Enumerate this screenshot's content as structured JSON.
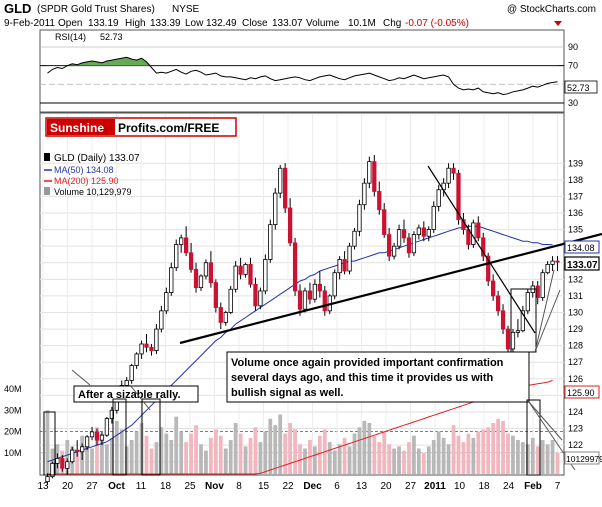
{
  "header": {
    "ticker": "GLD",
    "name": "(SPDR Gold Trust Shares)",
    "exchange": "NYSE",
    "copyright": "@ StockCharts.com",
    "date": "9-Feb-2011",
    "open_label": "Open",
    "open": "133.19",
    "high_label": "High",
    "high": "133.39",
    "low_label": "Low",
    "low": "132.49",
    "close_label": "Close",
    "close": "133.07",
    "volume_label": "Volume",
    "volume": "10.1M",
    "chg_label": "Chg",
    "chg": "-0.07 (-0.05%)"
  },
  "rsi_panel": {
    "label": "RSI(14)",
    "value": "52.73",
    "ticks": [
      "90",
      "70",
      "50",
      "30"
    ],
    "last_label": "52.73"
  },
  "banner": {
    "red": "Sunshine",
    "black": "Profits.com/FREE"
  },
  "legend": {
    "line1": "GLD (Daily) 133.07",
    "line2": "MA(50) 134.08",
    "line3": "MA(200) 125.90",
    "line4": "Volume 10,129,979"
  },
  "annotations": {
    "rally": "After a sizable rally.",
    "volume_note_1": "Volume once again provided important confirmation",
    "volume_note_2": "several days ago, and this time it provides us with",
    "volume_note_3": "bullish signal as well."
  },
  "price_axis": {
    "ticks": [
      "139",
      "138",
      "137",
      "136",
      "135",
      "134",
      "133",
      "132",
      "131",
      "130",
      "129",
      "128",
      "127",
      "126",
      "125",
      "124",
      "123",
      "122",
      "121"
    ],
    "labels": {
      "ma50": "134.08",
      "close": "133.07",
      "ma200": "125.90",
      "vol": "10129979"
    }
  },
  "volume_axis": {
    "ticks": [
      "40M",
      "30M",
      "20M",
      "10M"
    ]
  },
  "x_axis": {
    "ticks": [
      "13",
      "20",
      "27",
      "Oct",
      "11",
      "18",
      "25",
      "Nov",
      "8",
      "15",
      "22",
      "Dec",
      "6",
      "13",
      "20",
      "27",
      "2011",
      "10",
      "18",
      "24",
      "Feb",
      "7"
    ]
  },
  "colors": {
    "up": "#ffffff",
    "down": "#cc1133",
    "ma50": "#2233aa",
    "ma200": "#dd2222",
    "banner_red": "#cc0000",
    "rsi_fill": "#66aa55"
  },
  "chart_data": {
    "type": "candlestick",
    "title": "GLD (SPDR Gold Trust Shares) NYSE",
    "price_ylim": [
      120.5,
      139.8
    ],
    "series": [
      {
        "name": "GLD (Daily)",
        "values": [
          [
            119.8,
            120.3,
            119.6,
            120.1
          ],
          [
            120.1,
            121.0,
            120.0,
            120.9
          ],
          [
            120.9,
            121.5,
            120.6,
            121.2
          ],
          [
            121.2,
            121.4,
            120.4,
            120.6
          ],
          [
            120.6,
            121.2,
            120.2,
            121.0
          ],
          [
            121.0,
            121.9,
            120.9,
            121.7
          ],
          [
            121.7,
            122.3,
            121.3,
            121.6
          ],
          [
            121.6,
            122.1,
            121.1,
            121.9
          ],
          [
            121.9,
            122.6,
            121.7,
            122.5
          ],
          [
            122.5,
            123.1,
            122.3,
            122.8
          ],
          [
            122.8,
            123.0,
            122.0,
            122.3
          ],
          [
            122.3,
            122.8,
            122.0,
            122.6
          ],
          [
            122.6,
            123.7,
            122.5,
            123.6
          ],
          [
            123.6,
            124.3,
            123.3,
            124.1
          ],
          [
            124.1,
            125.0,
            123.9,
            124.8
          ],
          [
            124.8,
            125.9,
            124.6,
            125.6
          ],
          [
            125.6,
            126.1,
            125.2,
            125.9
          ],
          [
            125.9,
            126.9,
            125.7,
            126.8
          ],
          [
            126.8,
            127.6,
            126.6,
            127.5
          ],
          [
            127.5,
            128.3,
            127.2,
            128.1
          ],
          [
            128.1,
            128.7,
            127.6,
            127.9
          ],
          [
            127.9,
            128.1,
            127.4,
            127.7
          ],
          [
            127.7,
            129.3,
            127.5,
            129.0
          ],
          [
            129.0,
            130.4,
            128.8,
            130.1
          ],
          [
            130.1,
            131.5,
            129.9,
            131.2
          ],
          [
            131.2,
            133.0,
            131.0,
            132.7
          ],
          [
            132.7,
            134.4,
            132.5,
            134.1
          ],
          [
            134.1,
            134.7,
            133.6,
            134.5
          ],
          [
            134.5,
            135.2,
            133.4,
            133.6
          ],
          [
            133.6,
            134.2,
            132.4,
            132.6
          ],
          [
            132.6,
            133.0,
            131.2,
            131.5
          ],
          [
            131.5,
            132.3,
            131.3,
            132.2
          ],
          [
            132.2,
            133.2,
            132.0,
            133.0
          ],
          [
            133.0,
            133.7,
            131.5,
            131.8
          ],
          [
            131.8,
            132.0,
            130.0,
            130.3
          ],
          [
            130.3,
            130.6,
            129.0,
            129.4
          ],
          [
            129.4,
            130.1,
            129.2,
            130.0
          ],
          [
            130.0,
            131.6,
            129.9,
            131.4
          ],
          [
            131.4,
            133.1,
            131.2,
            132.8
          ],
          [
            132.8,
            133.3,
            132.0,
            132.3
          ],
          [
            132.3,
            133.0,
            132.1,
            132.9
          ],
          [
            132.9,
            133.3,
            131.5,
            131.7
          ],
          [
            131.7,
            132.1,
            130.1,
            130.4
          ],
          [
            130.4,
            131.5,
            130.2,
            131.3
          ],
          [
            131.3,
            133.5,
            131.1,
            133.2
          ],
          [
            133.2,
            135.6,
            133.0,
            135.3
          ],
          [
            135.3,
            137.5,
            135.0,
            137.2
          ],
          [
            137.2,
            138.9,
            136.9,
            138.7
          ],
          [
            138.7,
            139.0,
            136.0,
            136.3
          ],
          [
            136.3,
            136.9,
            134.0,
            134.2
          ],
          [
            134.2,
            134.5,
            131.0,
            131.3
          ],
          [
            131.3,
            131.7,
            129.8,
            130.2
          ],
          [
            130.2,
            131.5,
            130.0,
            131.3
          ],
          [
            131.3,
            131.8,
            130.5,
            130.8
          ],
          [
            130.8,
            132.0,
            130.6,
            131.7
          ],
          [
            131.7,
            132.5,
            130.9,
            131.3
          ],
          [
            131.3,
            131.6,
            129.8,
            130.1
          ],
          [
            130.1,
            131.1,
            129.9,
            131.0
          ],
          [
            131.0,
            132.6,
            130.8,
            132.4
          ],
          [
            132.4,
            133.4,
            132.0,
            133.2
          ],
          [
            133.2,
            133.7,
            132.3,
            132.5
          ],
          [
            132.5,
            134.2,
            132.3,
            134.0
          ],
          [
            134.0,
            135.1,
            133.8,
            134.9
          ],
          [
            134.9,
            136.8,
            134.6,
            136.5
          ],
          [
            136.5,
            138.1,
            136.2,
            137.8
          ],
          [
            137.8,
            139.4,
            137.5,
            139.1
          ],
          [
            139.1,
            139.5,
            137.0,
            137.3
          ],
          [
            137.3,
            137.9,
            135.9,
            136.2
          ],
          [
            136.2,
            136.6,
            134.5,
            134.7
          ],
          [
            134.7,
            135.1,
            133.1,
            133.4
          ],
          [
            133.4,
            134.2,
            133.2,
            134.0
          ],
          [
            134.0,
            135.3,
            133.8,
            135.0
          ],
          [
            135.0,
            135.6,
            134.2,
            134.5
          ],
          [
            134.5,
            134.8,
            133.3,
            133.6
          ],
          [
            133.6,
            134.9,
            133.4,
            134.7
          ],
          [
            134.7,
            135.3,
            134.4,
            135.1
          ],
          [
            135.1,
            135.5,
            134.3,
            134.6
          ],
          [
            134.6,
            135.2,
            134.3,
            135.0
          ],
          [
            135.0,
            136.7,
            134.8,
            136.4
          ],
          [
            136.4,
            137.7,
            136.1,
            137.4
          ],
          [
            137.4,
            138.1,
            137.0,
            137.8
          ],
          [
            137.8,
            139.0,
            137.5,
            138.7
          ],
          [
            138.7,
            139.0,
            138.0,
            138.4
          ],
          [
            138.4,
            138.6,
            135.3,
            135.6
          ],
          [
            135.6,
            136.0,
            134.7,
            135.0
          ],
          [
            135.0,
            135.3,
            133.8,
            134.1
          ],
          [
            134.1,
            135.6,
            133.9,
            135.4
          ],
          [
            135.4,
            135.8,
            134.3,
            134.5
          ],
          [
            134.5,
            134.8,
            133.1,
            133.4
          ],
          [
            133.4,
            133.6,
            131.6,
            131.9
          ],
          [
            131.9,
            132.3,
            130.7,
            131.0
          ],
          [
            131.0,
            131.3,
            129.8,
            130.1
          ],
          [
            130.1,
            130.5,
            128.7,
            129.0
          ],
          [
            129.0,
            129.2,
            127.5,
            127.8
          ],
          [
            127.8,
            129.0,
            127.6,
            128.8
          ],
          [
            128.8,
            129.6,
            128.5,
            128.9
          ],
          [
            128.9,
            130.4,
            128.8,
            130.1
          ],
          [
            130.1,
            131.4,
            129.9,
            131.2
          ],
          [
            131.2,
            131.9,
            130.9,
            131.6
          ],
          [
            131.6,
            131.9,
            130.5,
            130.9
          ],
          [
            130.9,
            132.6,
            130.7,
            132.4
          ],
          [
            132.4,
            133.1,
            132.3,
            132.9
          ],
          [
            132.9,
            133.4,
            132.5,
            133.1
          ],
          [
            133.1,
            133.4,
            132.5,
            133.07
          ]
        ]
      },
      {
        "name": "MA(50)",
        "values": [
          121.0,
          121.1,
          121.2,
          121.3,
          121.4,
          121.5,
          121.6,
          121.7,
          121.8,
          121.9,
          122.0,
          122.1,
          122.2,
          122.4,
          122.6,
          122.8,
          123.0,
          123.2,
          123.5,
          123.8,
          124.1,
          124.4,
          124.7,
          125.0,
          125.3,
          125.6,
          125.9,
          126.2,
          126.5,
          126.8,
          127.1,
          127.4,
          127.7,
          128.0,
          128.3,
          128.5,
          128.8,
          129.0,
          129.3,
          129.5,
          129.7,
          129.9,
          130.1,
          130.3,
          130.5,
          130.7,
          130.9,
          131.1,
          131.3,
          131.5,
          131.7,
          131.9,
          132.0,
          132.2,
          132.3,
          132.5,
          132.6,
          132.7,
          132.8,
          132.9,
          133.0,
          133.1,
          133.1,
          133.2,
          133.3,
          133.4,
          133.5,
          133.6,
          133.6,
          133.7,
          133.8,
          133.9,
          134.0,
          134.1,
          134.2,
          134.3,
          134.4,
          134.5,
          134.6,
          134.7,
          134.8,
          134.9,
          135.0,
          135.1,
          135.1,
          135.2,
          135.2,
          135.2,
          135.1,
          135.0,
          134.9,
          134.8,
          134.7,
          134.6,
          134.5,
          134.4,
          134.3,
          134.3,
          134.2,
          134.2,
          134.1,
          134.1,
          134.08
        ]
      },
      {
        "name": "MA(200)",
        "values": [
          116.0,
          116.1,
          116.2,
          116.3,
          116.4,
          116.5,
          116.6,
          116.7,
          116.8,
          116.9,
          117.0,
          117.1,
          117.2,
          117.3,
          117.4,
          117.5,
          117.6,
          117.7,
          117.8,
          117.9,
          118.0,
          118.1,
          118.2,
          118.3,
          118.4,
          118.5,
          118.6,
          118.7,
          118.8,
          118.9,
          119.0,
          119.1,
          119.2,
          119.3,
          119.4,
          119.5,
          119.6,
          119.7,
          119.8,
          119.9,
          120.0,
          120.1,
          120.2,
          120.3,
          120.4,
          120.5,
          120.6,
          120.7,
          120.8,
          120.9,
          121.0,
          121.1,
          121.2,
          121.3,
          121.4,
          121.5,
          121.6,
          121.7,
          121.8,
          121.9,
          122.0,
          122.1,
          122.2,
          122.3,
          122.4,
          122.5,
          122.6,
          122.7,
          122.8,
          122.9,
          123.0,
          123.1,
          123.2,
          123.3,
          123.4,
          123.5,
          123.6,
          123.7,
          123.8,
          123.9,
          124.0,
          124.1,
          124.2,
          124.3,
          124.4,
          124.5,
          124.6,
          124.7,
          124.8,
          124.9,
          125.0,
          125.1,
          125.2,
          125.3,
          125.4,
          125.5,
          125.55,
          125.6,
          125.65,
          125.7,
          125.75,
          125.8,
          125.9
        ]
      },
      {
        "name": "Volume",
        "values": [
          30,
          12,
          14,
          11,
          16,
          13,
          10,
          18,
          15,
          12,
          22,
          19,
          14,
          17,
          25,
          21,
          13,
          16,
          20,
          24,
          18,
          12,
          15,
          22,
          19,
          16,
          27,
          20,
          15,
          19,
          23,
          14,
          11,
          17,
          21,
          18,
          12,
          16,
          24,
          19,
          13,
          17,
          22,
          15,
          20,
          26,
          23,
          28,
          19,
          24,
          21,
          14,
          12,
          16,
          13,
          18,
          21,
          15,
          11,
          14,
          17,
          13,
          19,
          22,
          25,
          24,
          18,
          15,
          20,
          14,
          12,
          13,
          11,
          15,
          18,
          12,
          10,
          13,
          16,
          20,
          17,
          14,
          23,
          18,
          15,
          19,
          17,
          20,
          21,
          22,
          24,
          26,
          25,
          19,
          18,
          16,
          15,
          14,
          17,
          13,
          16,
          14,
          16,
          10.1
        ]
      },
      {
        "name": "RSI(14)",
        "values": [
          62,
          66,
          68,
          67,
          70,
          72,
          71,
          73,
          74,
          75,
          74,
          73,
          75,
          76,
          77,
          78,
          79,
          77,
          76,
          78,
          74,
          68,
          62,
          63,
          62,
          64,
          66,
          63,
          61,
          64,
          65,
          63,
          60,
          61,
          62,
          59,
          58,
          58,
          57,
          56,
          55,
          57,
          56,
          58,
          59,
          56,
          54,
          55,
          56,
          57,
          58,
          57,
          55,
          54,
          56,
          58,
          59,
          60,
          58,
          56,
          55,
          57,
          59,
          60,
          61,
          62,
          60,
          58,
          56,
          54,
          55,
          57,
          56,
          58,
          60,
          58,
          56,
          57,
          58,
          59,
          60,
          58,
          50,
          46,
          44,
          45,
          44,
          46,
          42,
          41,
          40,
          41,
          39,
          40,
          42,
          43,
          44,
          46,
          48,
          47,
          49,
          51,
          52,
          52.73
        ]
      }
    ],
    "trend_lines": [
      {
        "name": "support",
        "from": [
          "2010-09-27",
          128.6
        ],
        "to": [
          "2011-02-09",
          134.5
        ]
      },
      {
        "name": "resistance",
        "from": [
          "2011-01-01",
          139.0
        ],
        "to": [
          "2011-02-07",
          129.4
        ]
      }
    ],
    "xlabel": "",
    "ylabel": ""
  }
}
